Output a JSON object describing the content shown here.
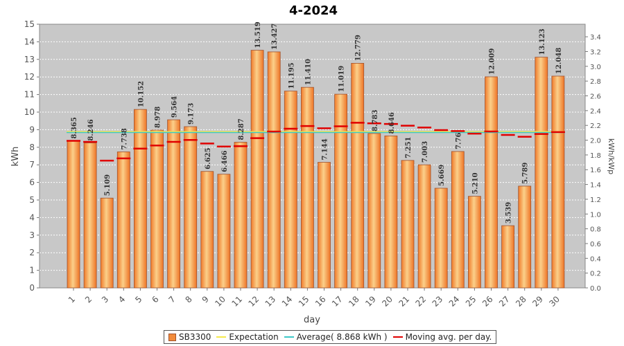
{
  "chart_data": {
    "type": "bar",
    "title": "4-2024",
    "xlabel": "day",
    "ylabel": "kWh",
    "ylabel_right": "kWh/kWp",
    "ylim": [
      0,
      15
    ],
    "ylim_right": [
      0,
      3.57
    ],
    "yticks": [
      0,
      1,
      2,
      3,
      4,
      5,
      6,
      7,
      8,
      9,
      10,
      11,
      12,
      13,
      14,
      15
    ],
    "yticks_right": [
      "0.0",
      "0.2",
      "0.4",
      "0.6",
      "0.8",
      "1.0",
      "1.2",
      "1.4",
      "1.6",
      "1.8",
      "2.0",
      "2.2",
      "2.4",
      "2.6",
      "2.8",
      "3.0",
      "3.2",
      "3.4"
    ],
    "categories": [
      "1",
      "2",
      "3",
      "4",
      "5",
      "6",
      "7",
      "8",
      "9",
      "10",
      "11",
      "12",
      "13",
      "14",
      "15",
      "16",
      "17",
      "18",
      "19",
      "20",
      "21",
      "22",
      "23",
      "24",
      "25",
      "26",
      "27",
      "28",
      "29",
      "30"
    ],
    "series": [
      {
        "name": "SB3300",
        "color": "#f28c3c",
        "values": [
          8.365,
          8.246,
          5.109,
          7.738,
          10.152,
          8.978,
          9.564,
          9.173,
          6.625,
          6.466,
          8.287,
          13.519,
          13.427,
          11.195,
          11.41,
          7.144,
          11.019,
          12.779,
          8.783,
          8.646,
          7.251,
          7.003,
          5.669,
          7.76,
          5.21,
          12.009,
          3.539,
          5.789,
          13.123,
          12.048
        ],
        "labels": [
          "8.365",
          "8.246",
          "5.109",
          "7.738",
          "10.152",
          "8.978",
          "9.564",
          "9.173",
          "6.625",
          "6.466",
          "8.287",
          "13.519",
          "13.427",
          "11.195",
          "11.410",
          "7.144",
          "11.019",
          "12.779",
          "8.783",
          "8.646",
          "7.251",
          "7.003",
          "5.669",
          "7.76",
          "5.210",
          "12.009",
          "3.539",
          "5.789",
          "13.123",
          "12.048"
        ]
      },
      {
        "name": "Expectation",
        "color": "#f5e94a",
        "value": 8.868
      },
      {
        "name": "Average( 8.868 kWh )",
        "color": "#3cc8c8",
        "value": 8.868
      },
      {
        "name": "Moving avg. per day.",
        "color": "#e00000",
        "values": [
          8.365,
          8.306,
          7.24,
          7.365,
          7.922,
          8.098,
          8.306,
          8.414,
          8.216,
          8.041,
          8.063,
          8.517,
          8.894,
          9.053,
          9.21,
          9.081,
          9.195,
          9.394,
          9.361,
          9.326,
          9.226,
          9.125,
          8.975,
          8.923,
          8.775,
          8.9,
          8.702,
          8.598,
          8.755,
          8.864
        ]
      }
    ],
    "legend_position": "bottom",
    "grid": true
  }
}
